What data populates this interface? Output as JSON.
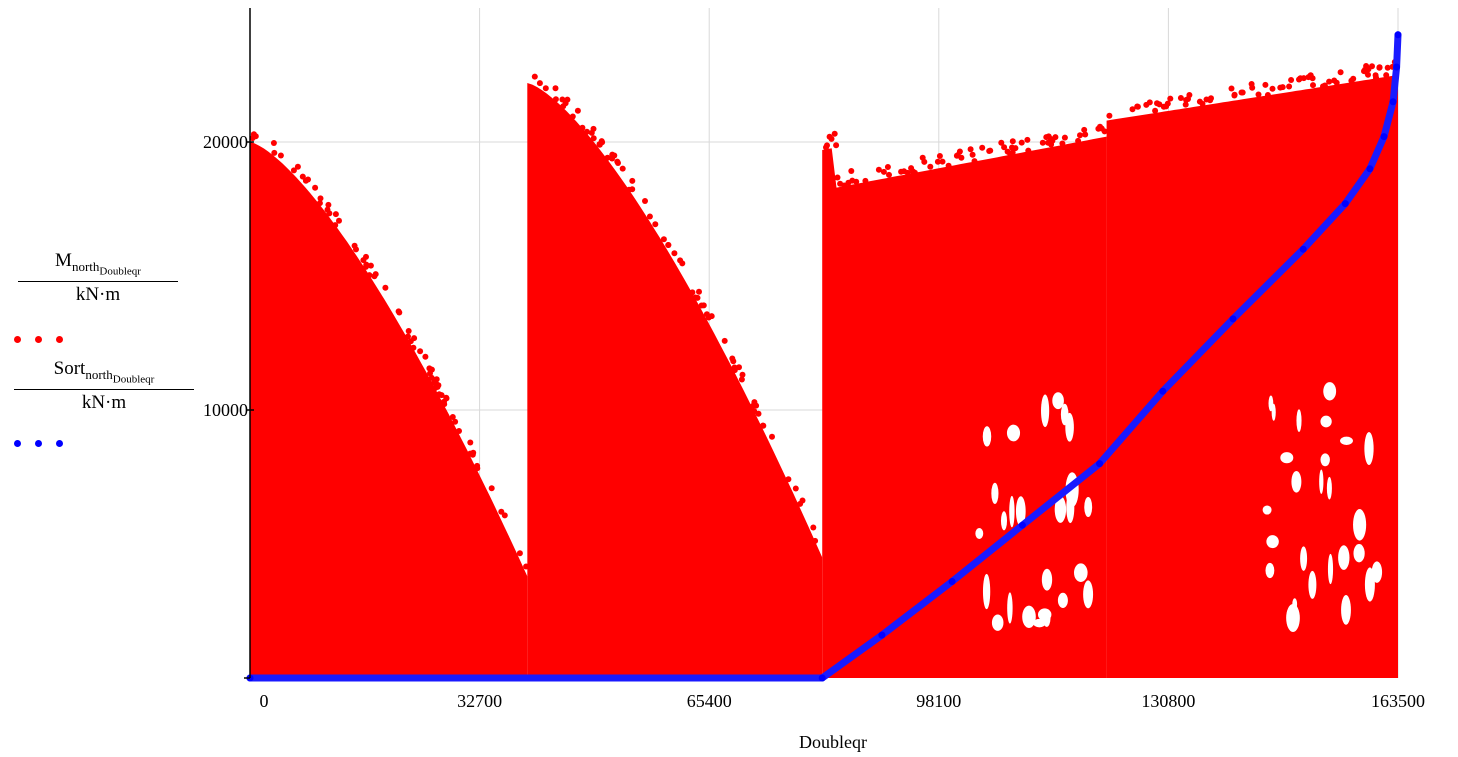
{
  "chart_data": {
    "type": "scatter",
    "xlabel": "Doubleqr",
    "xlim": [
      0,
      163500
    ],
    "ylim": [
      0,
      25000
    ],
    "x_ticks": [
      "0",
      "32700",
      "65400",
      "98100",
      "130800",
      "163500"
    ],
    "y_ticks": [
      "20000",
      "10000"
    ],
    "grid": true,
    "legend_position": "left",
    "series": [
      {
        "name": "M_north_Doubleqr / kN·m",
        "name_parts": {
          "base": "M",
          "sub1": "north",
          "sub2": "Doubleqr",
          "unit": "kN·m"
        },
        "color": "#ff0000",
        "style": "dots",
        "segments": [
          {
            "x_start": 0,
            "x_end": 39500,
            "peak_start": 20000,
            "peak_end": 3800
          },
          {
            "x_start": 39500,
            "x_end": 81500,
            "peak_start": 22200,
            "peak_end": 4500
          },
          {
            "x_start": 81500,
            "x_end": 122000,
            "peak_start": 19800,
            "peak_end": 20200
          },
          {
            "x_start": 122000,
            "x_end": 163500,
            "peak_start": 22000,
            "peak_end": 22500
          }
        ]
      },
      {
        "name": "Sort_north_Doubleqr / kN·m",
        "name_parts": {
          "base": "Sort",
          "sub1": "north",
          "sub2": "Doubleqr",
          "unit": "kN·m"
        },
        "color": "#0000ff",
        "style": "dots",
        "x": [
          0,
          81500,
          90000,
          100000,
          110000,
          121000,
          130000,
          140000,
          150000,
          156000,
          159500,
          161500,
          162800,
          163300,
          163500
        ],
        "y": [
          0,
          0,
          1600,
          3600,
          5700,
          8000,
          10700,
          13400,
          16000,
          17700,
          19000,
          20200,
          21500,
          22800,
          24000
        ]
      }
    ]
  }
}
